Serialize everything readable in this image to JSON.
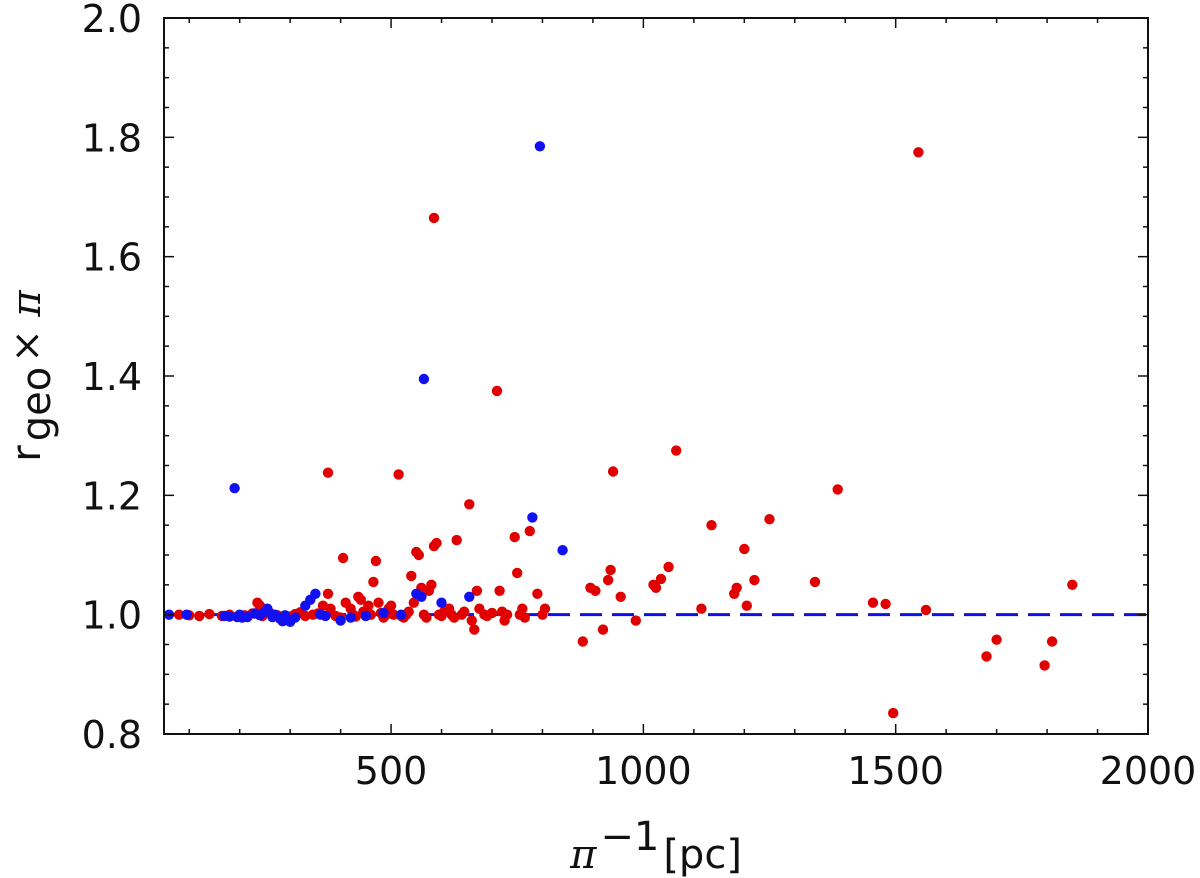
{
  "chart_data": {
    "type": "scatter",
    "title": "",
    "xlabel": {
      "main": "π",
      "sup": "−1",
      "unit": "[pc]"
    },
    "ylabel": {
      "main": "r",
      "sub": "geo",
      "rest": " × π"
    },
    "xlim": [
      50,
      2000
    ],
    "ylim": [
      0.8,
      2.0
    ],
    "xticks": [
      500,
      1000,
      1500,
      2000
    ],
    "yticks": [
      0.8,
      1.0,
      1.2,
      1.4,
      1.6,
      1.8,
      2.0
    ],
    "xtick_labels": [
      "500",
      "1000",
      "1500",
      "2000"
    ],
    "ytick_labels": [
      "0.8",
      "1.0",
      "1.2",
      "1.4",
      "1.6",
      "1.8",
      "2.0"
    ],
    "grid": false,
    "reference_line": {
      "y": 1.0,
      "style": "dashed",
      "color": "#1010e0"
    },
    "series": [
      {
        "color": "#e00000",
        "points": [
          [
            80,
            1.0
          ],
          [
            100,
            0.999
          ],
          [
            120,
            0.998
          ],
          [
            140,
            1.001
          ],
          [
            165,
            0.998
          ],
          [
            180,
            1.0
          ],
          [
            195,
            0.997
          ],
          [
            210,
            0.999
          ],
          [
            225,
            1.002
          ],
          [
            235,
            1.02
          ],
          [
            240,
            1.015
          ],
          [
            245,
            0.998
          ],
          [
            260,
            1.003
          ],
          [
            275,
            0.999
          ],
          [
            300,
            0.997
          ],
          [
            310,
            1.001
          ],
          [
            320,
            1.004
          ],
          [
            330,
            0.998
          ],
          [
            345,
            1.0
          ],
          [
            355,
            1.002
          ],
          [
            365,
            1.015
          ],
          [
            375,
            1.035
          ],
          [
            380,
            1.01
          ],
          [
            390,
            0.998
          ],
          [
            400,
            0.995
          ],
          [
            405,
            1.095
          ],
          [
            410,
            1.02
          ],
          [
            420,
            1.01
          ],
          [
            425,
            1.0
          ],
          [
            430,
            0.997
          ],
          [
            435,
            1.03
          ],
          [
            440,
            1.025
          ],
          [
            445,
            1.005
          ],
          [
            450,
            0.998
          ],
          [
            455,
            1.015
          ],
          [
            460,
            1.0
          ],
          [
            465,
            1.055
          ],
          [
            470,
            1.09
          ],
          [
            475,
            1.02
          ],
          [
            480,
            1.003
          ],
          [
            485,
            0.995
          ],
          [
            490,
            1.0
          ],
          [
            495,
            1.01
          ],
          [
            500,
            1.015
          ],
          [
            505,
            1.0
          ],
          [
            515,
            1.235
          ],
          [
            520,
            0.998
          ],
          [
            525,
            0.995
          ],
          [
            530,
            1.0
          ],
          [
            535,
            1.005
          ],
          [
            540,
            1.065
          ],
          [
            545,
            1.02
          ],
          [
            550,
            1.105
          ],
          [
            555,
            1.1
          ],
          [
            560,
            1.045
          ],
          [
            565,
            1.0
          ],
          [
            570,
            0.995
          ],
          [
            575,
            1.04
          ],
          [
            580,
            1.05
          ],
          [
            585,
            1.115
          ],
          [
            590,
            1.12
          ],
          [
            595,
            1.0
          ],
          [
            600,
            0.998
          ],
          [
            605,
            1.005
          ],
          [
            615,
            1.01
          ],
          [
            620,
            1.0
          ],
          [
            625,
            0.995
          ],
          [
            630,
            1.125
          ],
          [
            640,
            1.0
          ],
          [
            645,
            1.005
          ],
          [
            655,
            1.185
          ],
          [
            660,
            0.99
          ],
          [
            665,
            0.975
          ],
          [
            670,
            1.04
          ],
          [
            675,
            1.01
          ],
          [
            685,
            1.0
          ],
          [
            690,
            0.998
          ],
          [
            700,
            1.003
          ],
          [
            710,
            1.375
          ],
          [
            715,
            1.04
          ],
          [
            720,
            1.005
          ],
          [
            725,
            0.99
          ],
          [
            730,
            1.0
          ],
          [
            745,
            1.13
          ],
          [
            750,
            1.07
          ],
          [
            755,
            1.0
          ],
          [
            760,
            1.01
          ],
          [
            765,
            0.995
          ],
          [
            775,
            1.14
          ],
          [
            790,
            1.035
          ],
          [
            800,
            1.0
          ],
          [
            805,
            1.01
          ],
          [
            585,
            1.665
          ],
          [
            375,
            1.238
          ],
          [
            880,
            0.955
          ],
          [
            895,
            1.045
          ],
          [
            905,
            1.04
          ],
          [
            920,
            0.975
          ],
          [
            930,
            1.058
          ],
          [
            935,
            1.075
          ],
          [
            940,
            1.24
          ],
          [
            955,
            1.03
          ],
          [
            985,
            0.99
          ],
          [
            1020,
            1.05
          ],
          [
            1025,
            1.045
          ],
          [
            1035,
            1.06
          ],
          [
            1050,
            1.08
          ],
          [
            1065,
            1.275
          ],
          [
            1115,
            1.01
          ],
          [
            1135,
            1.15
          ],
          [
            1180,
            1.035
          ],
          [
            1185,
            1.045
          ],
          [
            1200,
            1.11
          ],
          [
            1205,
            1.015
          ],
          [
            1220,
            1.058
          ],
          [
            1250,
            1.16
          ],
          [
            1340,
            1.055
          ],
          [
            1385,
            1.21
          ],
          [
            1455,
            1.02
          ],
          [
            1480,
            1.018
          ],
          [
            1495,
            0.835
          ],
          [
            1545,
            1.775
          ],
          [
            1560,
            1.008
          ],
          [
            1680,
            0.93
          ],
          [
            1700,
            0.958
          ],
          [
            1795,
            0.915
          ],
          [
            1810,
            0.955
          ],
          [
            1850,
            1.05
          ]
        ]
      },
      {
        "color": "#1010f0",
        "points": [
          [
            60,
            1.0
          ],
          [
            95,
            1.0
          ],
          [
            170,
            0.998
          ],
          [
            180,
            0.997
          ],
          [
            195,
            0.996
          ],
          [
            200,
            1.0
          ],
          [
            205,
            0.995
          ],
          [
            215,
            0.996
          ],
          [
            230,
            1.002
          ],
          [
            240,
            0.999
          ],
          [
            250,
            1.005
          ],
          [
            255,
            1.01
          ],
          [
            265,
            0.996
          ],
          [
            270,
            1.0
          ],
          [
            280,
            0.993
          ],
          [
            285,
            0.989
          ],
          [
            290,
            0.999
          ],
          [
            300,
            0.988
          ],
          [
            310,
            0.995
          ],
          [
            330,
            1.015
          ],
          [
            340,
            1.025
          ],
          [
            350,
            1.035
          ],
          [
            360,
            1.0
          ],
          [
            370,
            0.998
          ],
          [
            400,
            0.99
          ],
          [
            420,
            0.995
          ],
          [
            450,
            0.998
          ],
          [
            485,
            1.003
          ],
          [
            520,
            1.0
          ],
          [
            550,
            1.035
          ],
          [
            560,
            1.03
          ],
          [
            565,
            1.395
          ],
          [
            600,
            1.02
          ],
          [
            655,
            1.03
          ],
          [
            780,
            1.163
          ],
          [
            795,
            1.785
          ],
          [
            840,
            1.108
          ],
          [
            190,
            1.212
          ]
        ]
      }
    ]
  }
}
